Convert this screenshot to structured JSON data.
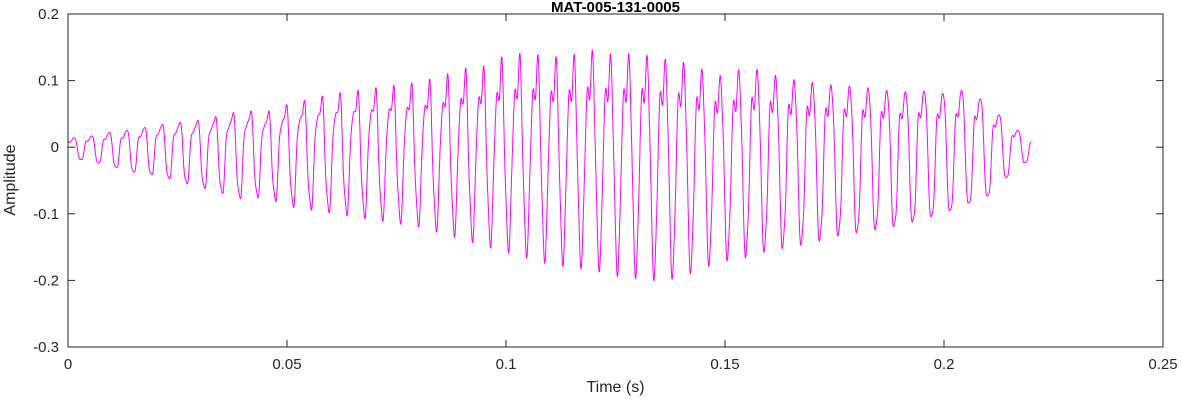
{
  "chart_data": {
    "type": "line",
    "title": "MAT-005-131-0005",
    "xlabel": "Time (s)",
    "ylabel": "Amplitude",
    "xlim": [
      0,
      0.25
    ],
    "ylim": [
      -0.3,
      0.2
    ],
    "xticks": [
      {
        "value": 0,
        "label": "0"
      },
      {
        "value": 0.05,
        "label": "0.05"
      },
      {
        "value": 0.1,
        "label": "0.1"
      },
      {
        "value": 0.15,
        "label": "0.15"
      },
      {
        "value": 0.2,
        "label": "0.2"
      },
      {
        "value": 0.25,
        "label": "0.25"
      }
    ],
    "yticks": [
      {
        "value": -0.3,
        "label": "-0.3"
      },
      {
        "value": -0.2,
        "label": "-0.2"
      },
      {
        "value": -0.1,
        "label": "-0.1"
      },
      {
        "value": 0,
        "label": "0"
      },
      {
        "value": 0.1,
        "label": "0.1"
      },
      {
        "value": 0.2,
        "label": "0.2"
      }
    ],
    "grid": false,
    "line_color": "#FF00FF",
    "axis_color": "#262626",
    "signal": {
      "description": "audio-like waveform burst: oscillation with slowly varying amplitude envelope, onset at t=0, end at t=0.22 s, peak positive amplitude ~0.19 near t=0.12 s, peak negative amplitude ~-0.22 near t=0.135 s",
      "start_s": 0,
      "end_s": 0.22,
      "sample_step_s": 4e-05,
      "carrier_freq_start_hz": 250,
      "carrier_chirp_hz_per_s": -80,
      "harmonics": [
        [
          1,
          1.0,
          0.0
        ],
        [
          2,
          0.28,
          2.1
        ],
        [
          3,
          0.1,
          0.8
        ],
        [
          4.02,
          0.08,
          1.7
        ]
      ],
      "harmonic_norm": 1.35,
      "envelope_t": [
        0,
        0.005,
        0.01,
        0.015,
        0.02,
        0.025,
        0.03,
        0.035,
        0.04,
        0.045,
        0.05,
        0.055,
        0.06,
        0.065,
        0.07,
        0.075,
        0.08,
        0.085,
        0.09,
        0.095,
        0.1,
        0.105,
        0.11,
        0.115,
        0.12,
        0.125,
        0.13,
        0.135,
        0.14,
        0.145,
        0.15,
        0.155,
        0.16,
        0.165,
        0.17,
        0.175,
        0.18,
        0.185,
        0.19,
        0.195,
        0.2,
        0.205,
        0.21,
        0.215,
        0.22
      ],
      "envelope_upper": [
        0.02,
        0.025,
        0.035,
        0.04,
        0.05,
        0.055,
        0.06,
        0.07,
        0.08,
        0.075,
        0.09,
        0.1,
        0.11,
        0.115,
        0.12,
        0.125,
        0.13,
        0.14,
        0.155,
        0.16,
        0.18,
        0.185,
        0.175,
        0.18,
        0.19,
        0.18,
        0.185,
        0.175,
        0.17,
        0.155,
        0.14,
        0.165,
        0.15,
        0.14,
        0.135,
        0.13,
        0.13,
        0.125,
        0.12,
        0.125,
        0.12,
        0.13,
        0.1,
        0.05,
        0.02
      ],
      "envelope_lower": [
        -0.02,
        -0.025,
        -0.035,
        -0.045,
        -0.05,
        -0.06,
        -0.07,
        -0.08,
        -0.09,
        -0.085,
        -0.1,
        -0.105,
        -0.11,
        -0.115,
        -0.12,
        -0.125,
        -0.13,
        -0.14,
        -0.15,
        -0.16,
        -0.17,
        -0.18,
        -0.19,
        -0.195,
        -0.2,
        -0.21,
        -0.215,
        -0.22,
        -0.215,
        -0.2,
        -0.19,
        -0.185,
        -0.175,
        -0.17,
        -0.165,
        -0.155,
        -0.15,
        -0.145,
        -0.14,
        -0.13,
        -0.12,
        -0.105,
        -0.09,
        -0.05,
        -0.02
      ]
    }
  }
}
